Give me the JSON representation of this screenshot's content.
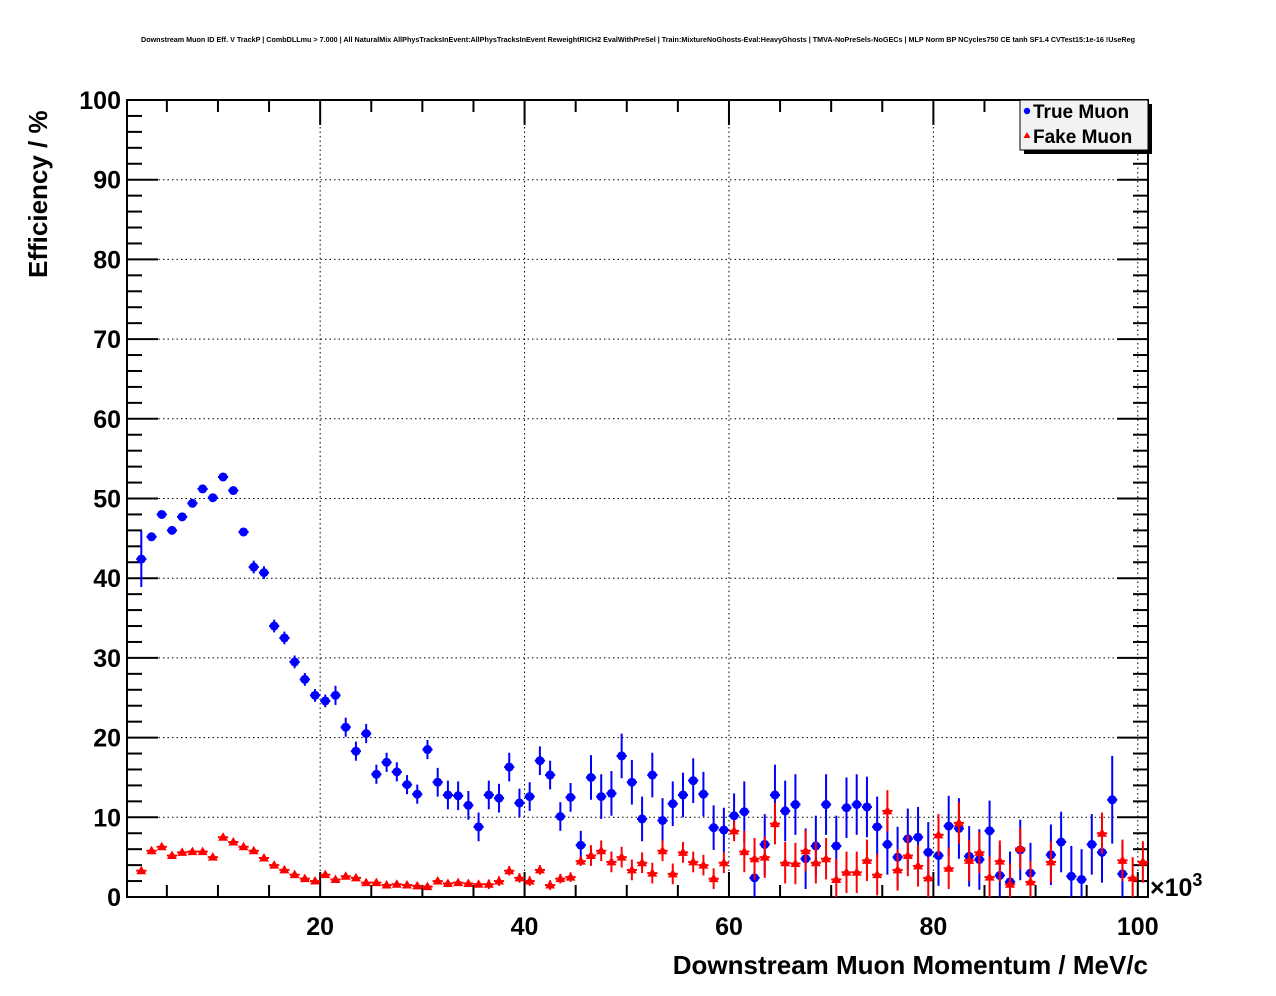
{
  "chart_data": {
    "type": "scatter",
    "title": "Downstream Muon ID Eff. V TrackP | CombDLLmu > 7.000 | All NaturalMix AllPhysTracksInEvent:AllPhysTracksInEvent ReweightRICH2 EvalWithPreSel | Train:MixtureNoGhosts-Eval:HeavyGhosts | TMVA-NoPreSels-NoGECs | MLP Norm BP NCycles750 CE tanh SF1.4 CVTest15:1e-16 !UseReg",
    "xlabel": "Downstream Muon Momentum / MeV/c",
    "ylabel": "Efficiency / %",
    "x_multiplier_label": "×10",
    "x_multiplier_exponent": "3",
    "xlim": [
      1.1,
      101
    ],
    "ylim": [
      0,
      100
    ],
    "xticks": [
      20,
      40,
      60,
      80,
      100
    ],
    "yticks": [
      0,
      10,
      20,
      30,
      40,
      50,
      60,
      70,
      80,
      90,
      100
    ],
    "grid": true,
    "legend_position": "top-right",
    "x_start": 2.5,
    "x_step": 1,
    "bin_width": 1,
    "series": [
      {
        "name": "True Muon",
        "color": "#0000ff",
        "marker": "circle",
        "values": [
          42.4,
          45.2,
          48.0,
          46.0,
          47.7,
          49.4,
          51.2,
          50.1,
          52.7,
          51.0,
          45.8,
          41.4,
          40.7,
          34.0,
          32.5,
          29.5,
          27.3,
          25.3,
          24.6,
          25.3,
          21.3,
          18.3,
          20.5,
          15.4,
          16.9,
          15.7,
          14.1,
          12.9,
          18.5,
          14.4,
          12.8,
          12.7,
          11.5,
          8.8,
          12.8,
          12.4,
          16.3,
          11.8,
          12.6,
          17.1,
          15.3,
          10.1,
          12.5,
          6.5,
          15.0,
          12.6,
          13.0,
          17.7,
          14.4,
          9.8,
          15.3,
          9.6,
          11.7,
          12.8,
          14.6,
          12.9,
          8.7,
          8.4,
          10.2,
          10.7,
          2.4,
          6.6,
          12.8,
          10.8,
          11.6,
          4.8,
          6.4,
          11.6,
          6.4,
          11.2,
          11.6,
          11.3,
          8.8,
          6.6,
          5.0,
          7.3,
          7.5,
          5.6,
          5.2,
          8.9,
          8.6,
          5.1,
          4.7,
          8.3,
          2.7,
          1.9,
          5.9,
          3.0,
          null,
          5.3,
          6.9,
          2.6,
          2.2,
          6.6,
          5.6,
          12.2,
          2.9,
          null,
          null
        ],
        "yerr": [
          3.5,
          0.4,
          0.4,
          0.4,
          0.4,
          0.4,
          0.4,
          0.4,
          0.4,
          0.4,
          0.4,
          0.8,
          0.8,
          0.8,
          0.8,
          0.8,
          0.8,
          0.8,
          0.8,
          1.2,
          1.2,
          1.2,
          1.2,
          1.2,
          1.2,
          1.2,
          1.2,
          1.2,
          1.2,
          1.8,
          1.8,
          1.8,
          1.8,
          1.8,
          1.8,
          1.8,
          1.8,
          1.8,
          1.8,
          1.8,
          1.8,
          1.8,
          1.8,
          1.8,
          2.8,
          2.8,
          2.8,
          2.8,
          2.8,
          2.8,
          2.8,
          2.8,
          2.8,
          2.8,
          2.8,
          2.8,
          2.8,
          2.8,
          2.8,
          3.8,
          3.8,
          3.8,
          3.8,
          3.8,
          3.8,
          3.8,
          3.8,
          3.8,
          3.8,
          3.8,
          3.8,
          3.8,
          3.8,
          3.8,
          3.8,
          3.8,
          3.8,
          3.8,
          3.8,
          3.8,
          3.8,
          3.8,
          3.8,
          3.8,
          3.8,
          3.8,
          3.8,
          3.8,
          3.8,
          3.8,
          3.8,
          3.8,
          3.8,
          3.8,
          3.8,
          5.5,
          3.8,
          3.8,
          3.8
        ]
      },
      {
        "name": "Fake Muon",
        "color": "#ff0000",
        "marker": "triangle",
        "values": [
          3.3,
          5.8,
          6.3,
          5.2,
          5.6,
          5.7,
          5.7,
          5.0,
          7.5,
          6.9,
          6.3,
          5.8,
          4.9,
          4.0,
          3.4,
          2.8,
          2.3,
          2.0,
          2.8,
          2.2,
          2.6,
          2.4,
          1.8,
          1.8,
          1.5,
          1.6,
          1.5,
          1.4,
          1.3,
          2.0,
          1.7,
          1.8,
          1.7,
          1.6,
          1.6,
          2.0,
          3.3,
          2.4,
          2.0,
          3.4,
          1.5,
          2.3,
          2.5,
          4.5,
          5.2,
          5.8,
          4.4,
          5.0,
          3.4,
          4.3,
          3.0,
          5.8,
          2.9,
          5.6,
          4.4,
          4.0,
          2.3,
          4.3,
          8.3,
          5.7,
          4.8,
          5.0,
          9.2,
          4.3,
          4.2,
          5.8,
          4.3,
          4.8,
          2.2,
          3.1,
          3.1,
          4.6,
          2.8,
          10.8,
          3.4,
          5.2,
          3.9,
          2.4,
          7.8,
          3.6,
          9.3,
          4.6,
          5.6,
          2.5,
          4.5,
          1.6,
          6.1,
          1.9,
          null,
          4.4,
          null,
          null,
          null,
          null,
          8.0,
          null,
          4.6,
          2.4,
          4.4
        ],
        "yerr": [
          0.3,
          0.3,
          0.3,
          0.3,
          0.3,
          0.3,
          0.3,
          0.3,
          0.3,
          0.3,
          0.3,
          0.3,
          0.3,
          0.3,
          0.3,
          0.3,
          0.3,
          0.3,
          0.3,
          0.3,
          0.3,
          0.3,
          0.3,
          0.3,
          0.3,
          0.3,
          0.3,
          0.3,
          0.3,
          0.3,
          0.3,
          0.3,
          0.3,
          0.3,
          0.6,
          0.6,
          0.6,
          0.6,
          0.6,
          0.6,
          0.6,
          0.6,
          0.6,
          0.6,
          1.3,
          1.3,
          1.3,
          1.3,
          1.3,
          1.3,
          1.3,
          1.3,
          1.3,
          1.3,
          1.3,
          1.3,
          1.3,
          1.3,
          1.3,
          2.6,
          2.6,
          2.6,
          2.6,
          2.6,
          2.6,
          2.6,
          2.6,
          2.6,
          2.6,
          2.6,
          2.6,
          2.6,
          2.6,
          2.6,
          2.6,
          2.6,
          2.6,
          2.6,
          2.6,
          2.6,
          2.6,
          2.6,
          2.6,
          2.6,
          2.6,
          2.6,
          2.6,
          2.6,
          2.6,
          2.6,
          2.6,
          2.6,
          2.6,
          2.6,
          2.6,
          2.6,
          2.6,
          2.6,
          2.6
        ]
      }
    ]
  }
}
